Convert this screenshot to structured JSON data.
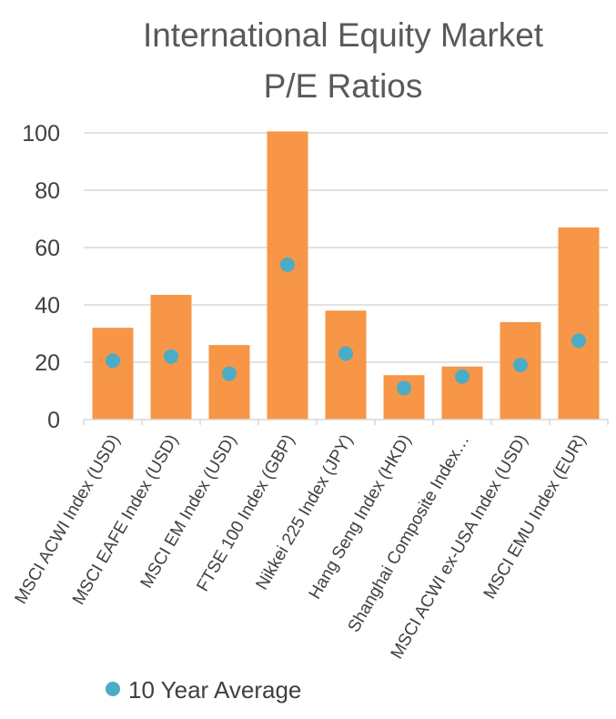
{
  "chart_data": {
    "type": "bar",
    "title_lines": [
      "International Equity Market",
      "P/E  Ratios"
    ],
    "categories": [
      "MSCI ACWI Index (USD)",
      "MSCI EAFE Index (USD)",
      "MSCI EM Index (USD)",
      "FTSE 100 Index (GBP)",
      "Nikkei 225 Index (JPY)",
      "Hang Seng Index (HKD)",
      "Shanghai Composite Index…",
      "MSCI ACWI ex-USA Index (USD)",
      "MSCI EMU Index (EUR)"
    ],
    "series": [
      {
        "type": "bar",
        "values": [
          32,
          43.5,
          26,
          100.5,
          38,
          15.5,
          18.5,
          34,
          67
        ]
      },
      {
        "name": "10 Year Average",
        "type": "scatter",
        "values": [
          20.5,
          22,
          16,
          54,
          23,
          11,
          15,
          19,
          27.5
        ]
      }
    ],
    "ylim": [
      0,
      100
    ],
    "yticks": [
      0,
      20,
      40,
      60,
      80,
      100
    ],
    "grid": true,
    "legend_position": "bottom-left",
    "colors": {
      "bar": "#F79646",
      "marker": "#4BACC6",
      "grid": "#D9D9D9",
      "axis": "#D9D9D9",
      "title": "#595959",
      "text": "#404040"
    }
  }
}
